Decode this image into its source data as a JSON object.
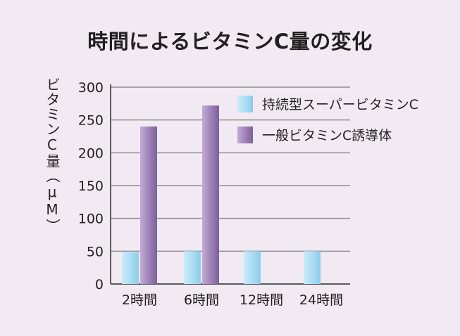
{
  "chart_data": {
    "type": "bar",
    "title": "時間によるビタミンC量の変化",
    "ylabel": "ビタミンC量（μM）",
    "xlabel": "",
    "categories": [
      "2時間",
      "6時間",
      "12時間",
      "24時間"
    ],
    "series": [
      {
        "name": "持続型スーパービタミンC",
        "values": [
          48,
          50,
          50,
          50
        ],
        "color": "#a9dcf4"
      },
      {
        "name": "一般ビタミンC誘導体",
        "values": [
          240,
          272,
          0,
          0
        ],
        "color": "#9d80b6"
      }
    ],
    "ylim": [
      0,
      300
    ],
    "yticks": [
      0,
      50,
      100,
      150,
      200,
      250,
      300
    ],
    "grid": true,
    "legend_position": "top-right"
  }
}
